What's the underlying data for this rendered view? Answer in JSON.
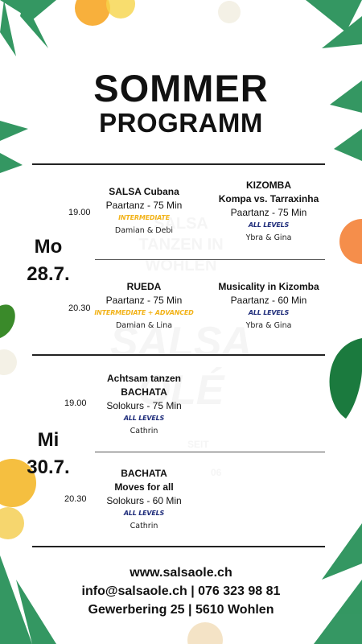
{
  "colors": {
    "text": "#111111",
    "intermediate": "#f2b31a",
    "all_levels": "#1e2c7a",
    "leaf": "#1f8c52",
    "flower": "#f7a21a"
  },
  "title": {
    "line1": "SOMMER",
    "line2": "PROGRAMM"
  },
  "watermark": {
    "school": "SALSA TANZEN IN WOHLEN",
    "brand": "SALSA OLÉ",
    "seit": "SEIT",
    "year": "06"
  },
  "days": [
    {
      "label": "Mo\n28.7.",
      "slots": [
        {
          "time": "19.00",
          "classes": [
            {
              "title": "SALSA Cubana",
              "type": "Paartanz - 75 Min",
              "level": "INTERMEDIATE",
              "teachers": "Damian & Debi"
            },
            {
              "title": "KIZOMBA\nKompa vs. Tarraxinha",
              "type": "Paartanz - 75 Min",
              "level": "ALL LEVELS",
              "teachers": "Ybra & Gina"
            }
          ]
        },
        {
          "time": "20.30",
          "classes": [
            {
              "title": "RUEDA",
              "type": "Paartanz - 75 Min",
              "level": "INTERMEDIATE + ADVANCED",
              "teachers": "Damian & Lina"
            },
            {
              "title": "Musicality in Kizomba",
              "type": "Paartanz - 60 Min",
              "level": "ALL LEVELS",
              "teachers": "Ybra & Gina"
            }
          ]
        }
      ]
    },
    {
      "label": "Mi\n30.7.",
      "slots": [
        {
          "time": "19.00",
          "classes": [
            {
              "title": "Achtsam tanzen\nBACHATA",
              "type": "Solokurs - 75 Min",
              "level": "ALL LEVELS",
              "teachers": "Cathrin"
            }
          ]
        },
        {
          "time": "20.30",
          "classes": [
            {
              "title": "BACHATA\nMoves for all",
              "type": "Solokurs - 60 Min",
              "level": "ALL LEVELS",
              "teachers": "Cathrin"
            }
          ]
        }
      ]
    }
  ],
  "footer": {
    "web": "www.salsaole.ch",
    "contact": "info@salsaole.ch | 076 323 98 81",
    "address": "Gewerbering 25 | 5610 Wohlen"
  },
  "decorations": [
    "palm-leaf-icon",
    "flower-icon"
  ]
}
